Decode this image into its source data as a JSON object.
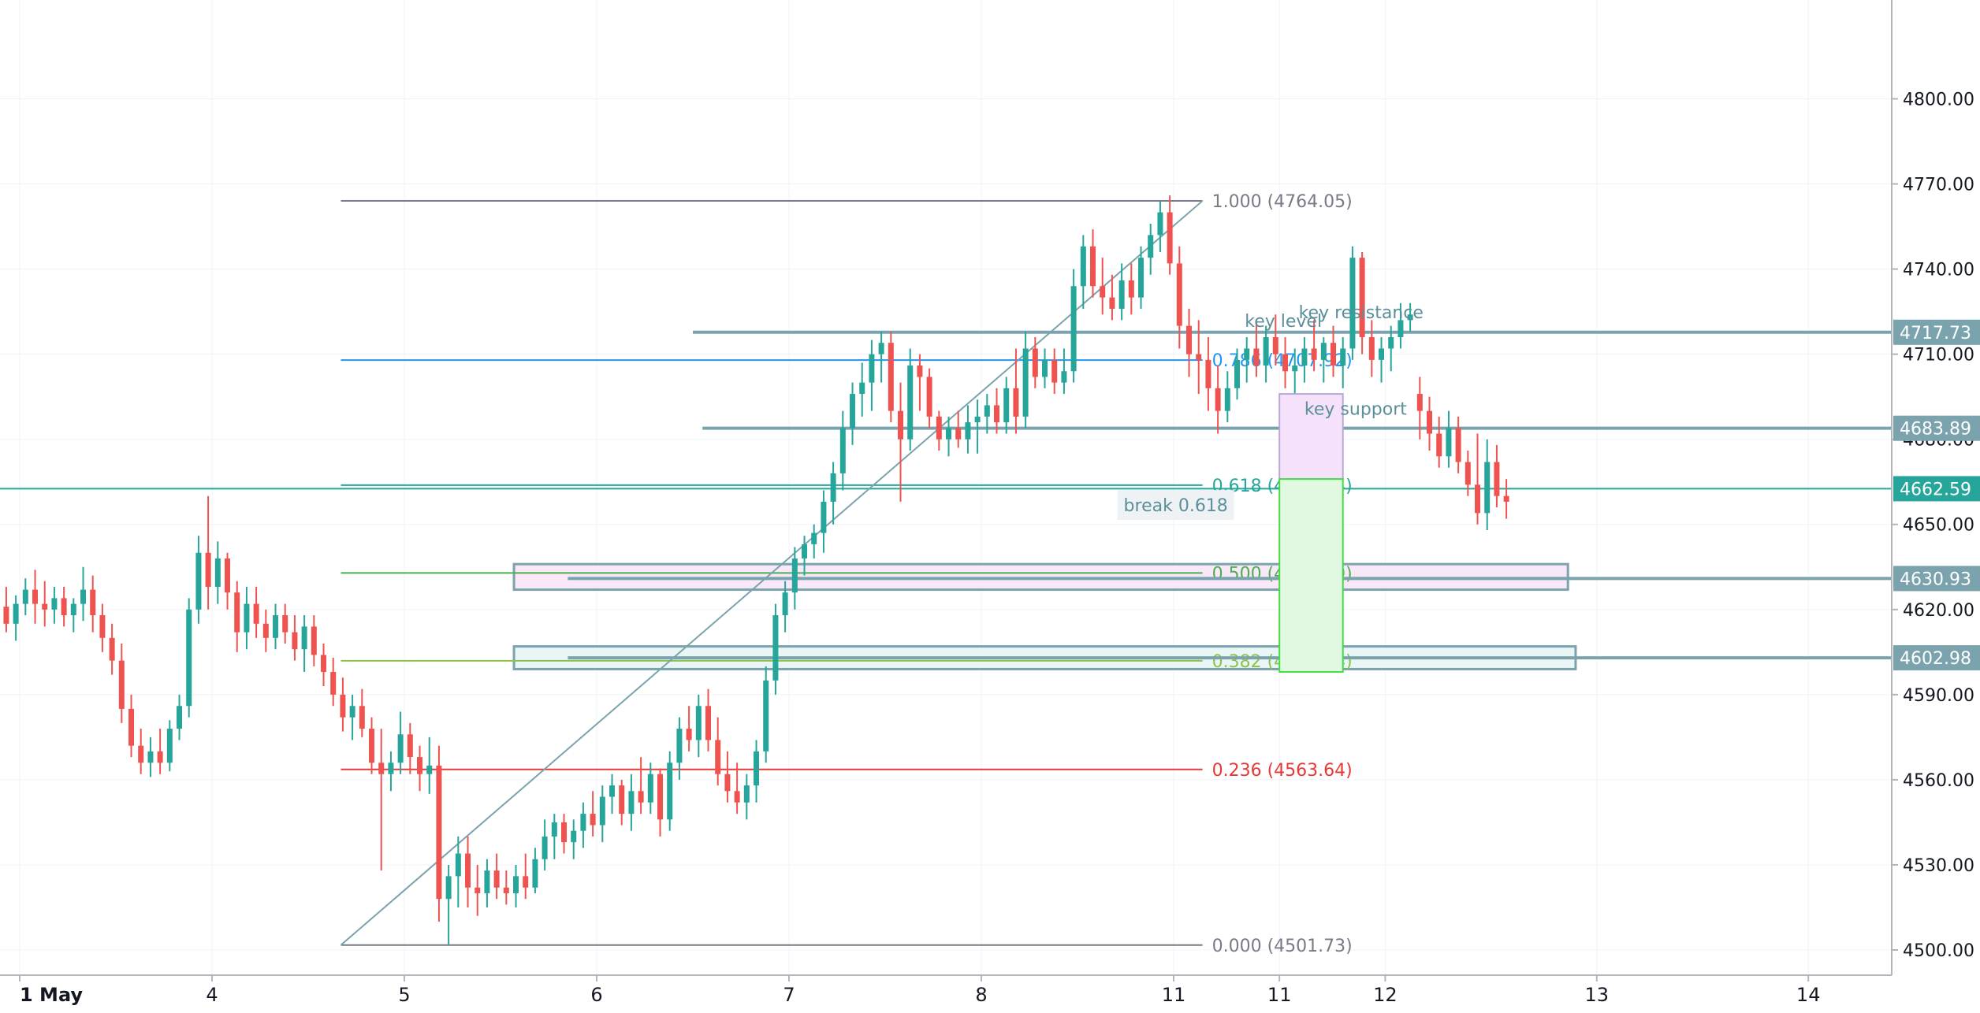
{
  "chart_data": {
    "type": "candlestick",
    "ylim": [
      4487,
      4830
    ],
    "y_ticks": [
      "4500.00",
      "4530.00",
      "4560.00",
      "4590.00",
      "4620.00",
      "4650.00",
      "4680.00",
      "4710.00",
      "4740.00",
      "4770.00",
      "4800.00"
    ],
    "x_ticks": [
      "1 May",
      "4",
      "5",
      "6",
      "7",
      "8",
      "11",
      "11",
      "12",
      "13",
      "14"
    ],
    "x_ticks_pos": [
      0.0,
      1.0,
      2.0,
      3.0,
      4.0,
      5.0,
      6.0,
      6.55,
      7.1,
      8.2,
      9.3
    ],
    "candles": [
      [
        -0.12,
        4617,
        4626,
        4612,
        4621
      ],
      [
        -0.07,
        4621,
        4628,
        4612,
        4615
      ],
      [
        -0.02,
        4615,
        4625,
        4609,
        4622
      ],
      [
        0.03,
        4622,
        4631,
        4618,
        4627
      ],
      [
        0.08,
        4627,
        4634,
        4615,
        4622
      ],
      [
        0.13,
        4622,
        4630,
        4614,
        4620
      ],
      [
        0.18,
        4620,
        4628,
        4615,
        4624
      ],
      [
        0.23,
        4624,
        4628,
        4614,
        4618
      ],
      [
        0.28,
        4618,
        4624,
        4612,
        4622
      ],
      [
        0.33,
        4622,
        4635,
        4616,
        4627
      ],
      [
        0.38,
        4627,
        4632,
        4612,
        4618
      ],
      [
        0.43,
        4618,
        4622,
        4605,
        4610
      ],
      [
        0.48,
        4610,
        4615,
        4597,
        4602
      ],
      [
        0.53,
        4602,
        4608,
        4580,
        4585
      ],
      [
        0.58,
        4585,
        4590,
        4568,
        4572
      ],
      [
        0.63,
        4572,
        4578,
        4562,
        4566
      ],
      [
        0.68,
        4566,
        4575,
        4561,
        4570
      ],
      [
        0.73,
        4570,
        4578,
        4562,
        4566
      ],
      [
        0.78,
        4566,
        4581,
        4563,
        4578
      ],
      [
        0.83,
        4578,
        4590,
        4574,
        4586
      ],
      [
        0.88,
        4586,
        4624,
        4582,
        4620
      ],
      [
        0.93,
        4620,
        4646,
        4615,
        4640
      ],
      [
        0.98,
        4640,
        4660,
        4620,
        4628
      ],
      [
        1.03,
        4628,
        4644,
        4622,
        4638
      ],
      [
        1.08,
        4638,
        4640,
        4620,
        4626
      ],
      [
        1.13,
        4626,
        4630,
        4605,
        4612
      ],
      [
        1.18,
        4612,
        4628,
        4606,
        4622
      ],
      [
        1.23,
        4622,
        4628,
        4610,
        4615
      ],
      [
        1.28,
        4615,
        4620,
        4605,
        4610
      ],
      [
        1.33,
        4610,
        4622,
        4606,
        4618
      ],
      [
        1.38,
        4618,
        4622,
        4608,
        4612
      ],
      [
        1.43,
        4612,
        4618,
        4602,
        4606
      ],
      [
        1.48,
        4606,
        4618,
        4598,
        4614
      ],
      [
        1.53,
        4614,
        4618,
        4600,
        4604
      ],
      [
        1.58,
        4604,
        4608,
        4593,
        4598
      ],
      [
        1.63,
        4598,
        4603,
        4586,
        4590
      ],
      [
        1.68,
        4590,
        4596,
        4577,
        4582
      ],
      [
        1.73,
        4582,
        4590,
        4574,
        4586
      ],
      [
        1.78,
        4586,
        4592,
        4575,
        4578
      ],
      [
        1.83,
        4578,
        4582,
        4562,
        4566
      ],
      [
        1.88,
        4566,
        4578,
        4528,
        4562
      ],
      [
        1.93,
        4562,
        4570,
        4556,
        4566
      ],
      [
        1.98,
        4566,
        4584,
        4562,
        4576
      ],
      [
        2.03,
        4576,
        4580,
        4562,
        4568
      ],
      [
        2.08,
        4568,
        4572,
        4556,
        4562
      ],
      [
        2.13,
        4562,
        4575,
        4555,
        4565
      ],
      [
        2.18,
        4565,
        4572,
        4510,
        4518
      ],
      [
        2.23,
        4518,
        4530,
        4502,
        4526
      ],
      [
        2.28,
        4526,
        4540,
        4515,
        4534
      ],
      [
        2.33,
        4534,
        4540,
        4515,
        4522
      ],
      [
        2.38,
        4522,
        4530,
        4512,
        4520
      ],
      [
        2.43,
        4520,
        4532,
        4515,
        4528
      ],
      [
        2.48,
        4528,
        4534,
        4518,
        4522
      ],
      [
        2.53,
        4522,
        4528,
        4516,
        4520
      ],
      [
        2.58,
        4520,
        4530,
        4515,
        4526
      ],
      [
        2.63,
        4526,
        4534,
        4518,
        4522
      ],
      [
        2.68,
        4522,
        4536,
        4520,
        4532
      ],
      [
        2.73,
        4532,
        4546,
        4528,
        4540
      ],
      [
        2.78,
        4540,
        4548,
        4532,
        4545
      ],
      [
        2.83,
        4545,
        4548,
        4534,
        4538
      ],
      [
        2.88,
        4538,
        4546,
        4532,
        4542
      ],
      [
        2.93,
        4542,
        4552,
        4536,
        4548
      ],
      [
        2.98,
        4548,
        4556,
        4540,
        4544
      ],
      [
        3.03,
        4544,
        4558,
        4538,
        4554
      ],
      [
        3.08,
        4554,
        4562,
        4548,
        4558
      ],
      [
        3.13,
        4558,
        4560,
        4544,
        4548
      ],
      [
        3.18,
        4548,
        4562,
        4542,
        4556
      ],
      [
        3.23,
        4556,
        4568,
        4548,
        4552
      ],
      [
        3.28,
        4552,
        4566,
        4548,
        4562
      ],
      [
        3.33,
        4562,
        4564,
        4540,
        4546
      ],
      [
        3.38,
        4546,
        4570,
        4542,
        4566
      ],
      [
        3.43,
        4566,
        4582,
        4560,
        4578
      ],
      [
        3.48,
        4578,
        4586,
        4570,
        4574
      ],
      [
        3.53,
        4574,
        4590,
        4568,
        4586
      ],
      [
        3.58,
        4586,
        4592,
        4570,
        4574
      ],
      [
        3.63,
        4574,
        4582,
        4558,
        4562
      ],
      [
        3.68,
        4562,
        4570,
        4552,
        4556
      ],
      [
        3.73,
        4556,
        4566,
        4548,
        4552
      ],
      [
        3.78,
        4552,
        4562,
        4546,
        4558
      ],
      [
        3.83,
        4558,
        4574,
        4552,
        4570
      ],
      [
        3.88,
        4570,
        4600,
        4566,
        4595
      ],
      [
        3.93,
        4595,
        4622,
        4590,
        4618
      ],
      [
        3.98,
        4618,
        4630,
        4612,
        4626
      ],
      [
        4.03,
        4626,
        4642,
        4620,
        4638
      ],
      [
        4.08,
        4638,
        4646,
        4632,
        4643
      ],
      [
        4.13,
        4643,
        4650,
        4638,
        4647
      ],
      [
        4.18,
        4647,
        4662,
        4640,
        4658
      ],
      [
        4.23,
        4658,
        4672,
        4650,
        4668
      ],
      [
        4.28,
        4668,
        4690,
        4662,
        4684
      ],
      [
        4.33,
        4684,
        4700,
        4678,
        4696
      ],
      [
        4.38,
        4696,
        4707,
        4688,
        4700
      ],
      [
        4.43,
        4700,
        4715,
        4690,
        4710
      ],
      [
        4.48,
        4710,
        4718,
        4700,
        4714
      ],
      [
        4.53,
        4714,
        4718,
        4686,
        4690
      ],
      [
        4.58,
        4690,
        4700,
        4658,
        4680
      ],
      [
        4.63,
        4680,
        4712,
        4676,
        4706
      ],
      [
        4.68,
        4706,
        4710,
        4690,
        4702
      ],
      [
        4.73,
        4702,
        4705,
        4684,
        4688
      ],
      [
        4.78,
        4688,
        4690,
        4676,
        4680
      ],
      [
        4.83,
        4680,
        4688,
        4674,
        4684
      ],
      [
        4.88,
        4684,
        4690,
        4677,
        4680
      ],
      [
        4.93,
        4680,
        4692,
        4675,
        4686
      ],
      [
        4.98,
        4686,
        4694,
        4675,
        4688
      ],
      [
        5.03,
        4688,
        4696,
        4682,
        4692
      ],
      [
        5.08,
        4692,
        4698,
        4682,
        4686
      ],
      [
        5.13,
        4686,
        4702,
        4682,
        4698
      ],
      [
        5.18,
        4698,
        4712,
        4682,
        4688
      ],
      [
        5.23,
        4688,
        4718,
        4684,
        4712
      ],
      [
        5.28,
        4712,
        4716,
        4698,
        4702
      ],
      [
        5.33,
        4702,
        4712,
        4698,
        4708
      ],
      [
        5.38,
        4708,
        4712,
        4696,
        4700
      ],
      [
        5.43,
        4700,
        4712,
        4696,
        4704
      ],
      [
        5.48,
        4704,
        4740,
        4700,
        4734
      ],
      [
        5.53,
        4734,
        4752,
        4726,
        4748
      ],
      [
        5.58,
        4748,
        4754,
        4730,
        4734
      ],
      [
        5.63,
        4734,
        4744,
        4724,
        4730
      ],
      [
        5.68,
        4730,
        4738,
        4722,
        4726
      ],
      [
        5.73,
        4726,
        4742,
        4722,
        4736
      ],
      [
        5.78,
        4736,
        4742,
        4724,
        4730
      ],
      [
        5.83,
        4730,
        4748,
        4726,
        4744
      ],
      [
        5.88,
        4744,
        4756,
        4738,
        4752
      ],
      [
        5.93,
        4752,
        4764,
        4746,
        4760
      ],
      [
        5.98,
        4760,
        4766,
        4738,
        4742
      ],
      [
        6.03,
        4742,
        4748,
        4712,
        4720
      ],
      [
        6.08,
        4720,
        4726,
        4702,
        4710
      ],
      [
        6.13,
        4710,
        4722,
        4696,
        4708
      ],
      [
        6.18,
        4708,
        4716,
        4690,
        4698
      ],
      [
        6.23,
        4698,
        4706,
        4682,
        4690
      ],
      [
        6.28,
        4690,
        4704,
        4686,
        4698
      ],
      [
        6.33,
        4698,
        4712,
        4694,
        4708
      ],
      [
        6.38,
        4708,
        4716,
        4700,
        4712
      ],
      [
        6.43,
        4712,
        4722,
        4702,
        4706
      ],
      [
        6.48,
        4706,
        4720,
        4700,
        4716
      ],
      [
        6.53,
        4716,
        4724,
        4706,
        4710
      ],
      [
        6.58,
        4710,
        4716,
        4698,
        4704
      ],
      [
        6.63,
        4704,
        4712,
        4696,
        4706
      ],
      [
        6.68,
        4706,
        4716,
        4700,
        4712
      ],
      [
        6.73,
        4712,
        4722,
        4704,
        4708
      ],
      [
        6.78,
        4708,
        4716,
        4700,
        4714
      ],
      [
        6.83,
        4714,
        4720,
        4702,
        4706
      ],
      [
        6.88,
        4706,
        4716,
        4698,
        4712
      ],
      [
        6.93,
        4712,
        4748,
        4708,
        4744
      ],
      [
        6.98,
        4744,
        4746,
        4710,
        4716
      ],
      [
        7.03,
        4716,
        4722,
        4702,
        4708
      ],
      [
        7.08,
        4708,
        4716,
        4700,
        4712
      ],
      [
        7.13,
        4712,
        4720,
        4704,
        4716
      ],
      [
        7.18,
        4716,
        4728,
        4712,
        4722
      ],
      [
        7.23,
        4722,
        4728,
        4718,
        4724
      ],
      [
        7.28,
        4696,
        4702,
        4680,
        4690
      ],
      [
        7.33,
        4690,
        4695,
        4676,
        4682
      ],
      [
        7.38,
        4682,
        4688,
        4670,
        4674
      ],
      [
        7.43,
        4674,
        4690,
        4670,
        4684
      ],
      [
        7.48,
        4684,
        4688,
        4668,
        4672
      ],
      [
        7.53,
        4672,
        4676,
        4660,
        4664
      ],
      [
        7.58,
        4664,
        4682,
        4650,
        4654
      ],
      [
        7.63,
        4654,
        4680,
        4648,
        4672
      ],
      [
        7.68,
        4672,
        4678,
        4656,
        4660
      ],
      [
        7.73,
        4660,
        4666,
        4652,
        4658
      ]
    ],
    "horizontal_levels": [
      {
        "label": "4717.73",
        "y": 4717.73,
        "x_start": 3.5
      },
      {
        "label": "4683.89",
        "y": 4683.89,
        "x_start": 3.55
      },
      {
        "label": "4662.59",
        "y": 4662.59,
        "x_start": -0.2
      },
      {
        "label": "4630.93",
        "y": 4630.93,
        "x_start": 2.85
      },
      {
        "label": "4602.98",
        "y": 4602.98,
        "x_start": 2.85
      }
    ],
    "current_price": "4662.59",
    "fibonacci": [
      {
        "ratio": "1.000",
        "value": "4764.05",
        "y": 4764.05,
        "color": "#787b86"
      },
      {
        "ratio": "0.786",
        "value": "4707.92",
        "y": 4707.92,
        "color": "#2196f3"
      },
      {
        "ratio": "0.618",
        "value": "4663.84",
        "y": 4663.84,
        "color": "#26a69a"
      },
      {
        "ratio": "0.500",
        "value": "4632.89",
        "y": 4632.89,
        "color": "#4caf50"
      },
      {
        "ratio": "0.382",
        "value": "4601.94",
        "y": 4601.94,
        "color": "#8bc34a"
      },
      {
        "ratio": "0.236",
        "value": "4563.64",
        "y": 4563.64,
        "color": "#e53935"
      },
      {
        "ratio": "0.000",
        "value": "4501.73",
        "y": 4501.73,
        "color": "#787b86"
      }
    ],
    "fib_x_range": [
      1.67,
      6.15
    ],
    "trendline": {
      "x1": 1.67,
      "y1": 4501.73,
      "x2": 6.15,
      "y2": 4764.05
    },
    "zones": [
      {
        "x1": 2.57,
        "x2": 8.05,
        "y_top": 4636,
        "y_bottom": 4627,
        "fill": "#f8e8f8"
      },
      {
        "x1": 2.57,
        "x2": 8.09,
        "y_top": 4607,
        "y_bottom": 4599,
        "fill": "#eaf6f6"
      }
    ],
    "position": {
      "x1": 6.55,
      "x2": 6.88,
      "profit_top": 4696,
      "entry": 4666,
      "stop_bottom": 4598,
      "upper_fill": "#f5e1fa",
      "lower_fill": "#e0f9e0"
    },
    "annotations": [
      {
        "text": "key resistance",
        "x": 6.65,
        "y": 4724
      },
      {
        "text": "key level",
        "x": 6.37,
        "y": 4721
      },
      {
        "text": "key support",
        "x": 6.68,
        "y": 4690
      },
      {
        "text": "break 0.618",
        "x": 5.74,
        "y": 4656
      }
    ],
    "colors": {
      "up": "#26a69a",
      "down": "#ef5350",
      "level_line": "#7aa3ad",
      "current_price": "#26a69a"
    }
  }
}
